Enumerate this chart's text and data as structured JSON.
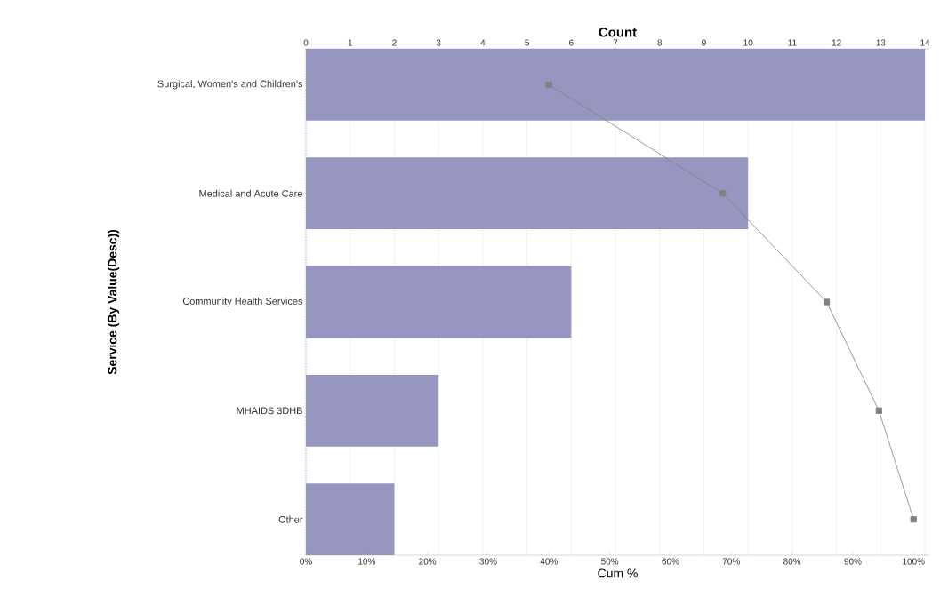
{
  "chart_data": {
    "type": "bar",
    "orientation": "horizontal",
    "xlabel": "Cum %",
    "x2label": "Count",
    "ylabel": "Service (By Value(Desc))",
    "categories": [
      "Surgical, Women's and Children's",
      "Medical and Acute Care",
      "Community Health Services",
      "MHAIDS 3DHB",
      "Other"
    ],
    "series": [
      {
        "axis": "x2",
        "color": "#9696c0",
        "values": [
          14,
          10,
          6,
          3,
          2
        ]
      },
      {
        "type": "line",
        "color": "#808080",
        "marker": "square",
        "line_style": "solid",
        "values": [
          40,
          68.6,
          85.7,
          94.3,
          100
        ]
      }
    ],
    "xlim": [
      0,
      102.6
    ],
    "xticks": [
      {
        "value": 0,
        "label": "0%"
      },
      {
        "value": 10,
        "label": "10%"
      },
      {
        "value": 20,
        "label": "20%"
      },
      {
        "value": 30,
        "label": "30%"
      },
      {
        "value": 40,
        "label": "40%"
      },
      {
        "value": 50,
        "label": "50%"
      },
      {
        "value": 60,
        "label": "60%"
      },
      {
        "value": 70,
        "label": "70%"
      },
      {
        "value": 80,
        "label": "80%"
      },
      {
        "value": 90,
        "label": "90%"
      },
      {
        "value": 100,
        "label": "100%"
      }
    ],
    "x2lim": [
      0,
      14.1
    ],
    "x2ticks": [
      0,
      1,
      2,
      3,
      4,
      5,
      6,
      7,
      8,
      9,
      10,
      11,
      12,
      13,
      14
    ],
    "grid": "x"
  }
}
